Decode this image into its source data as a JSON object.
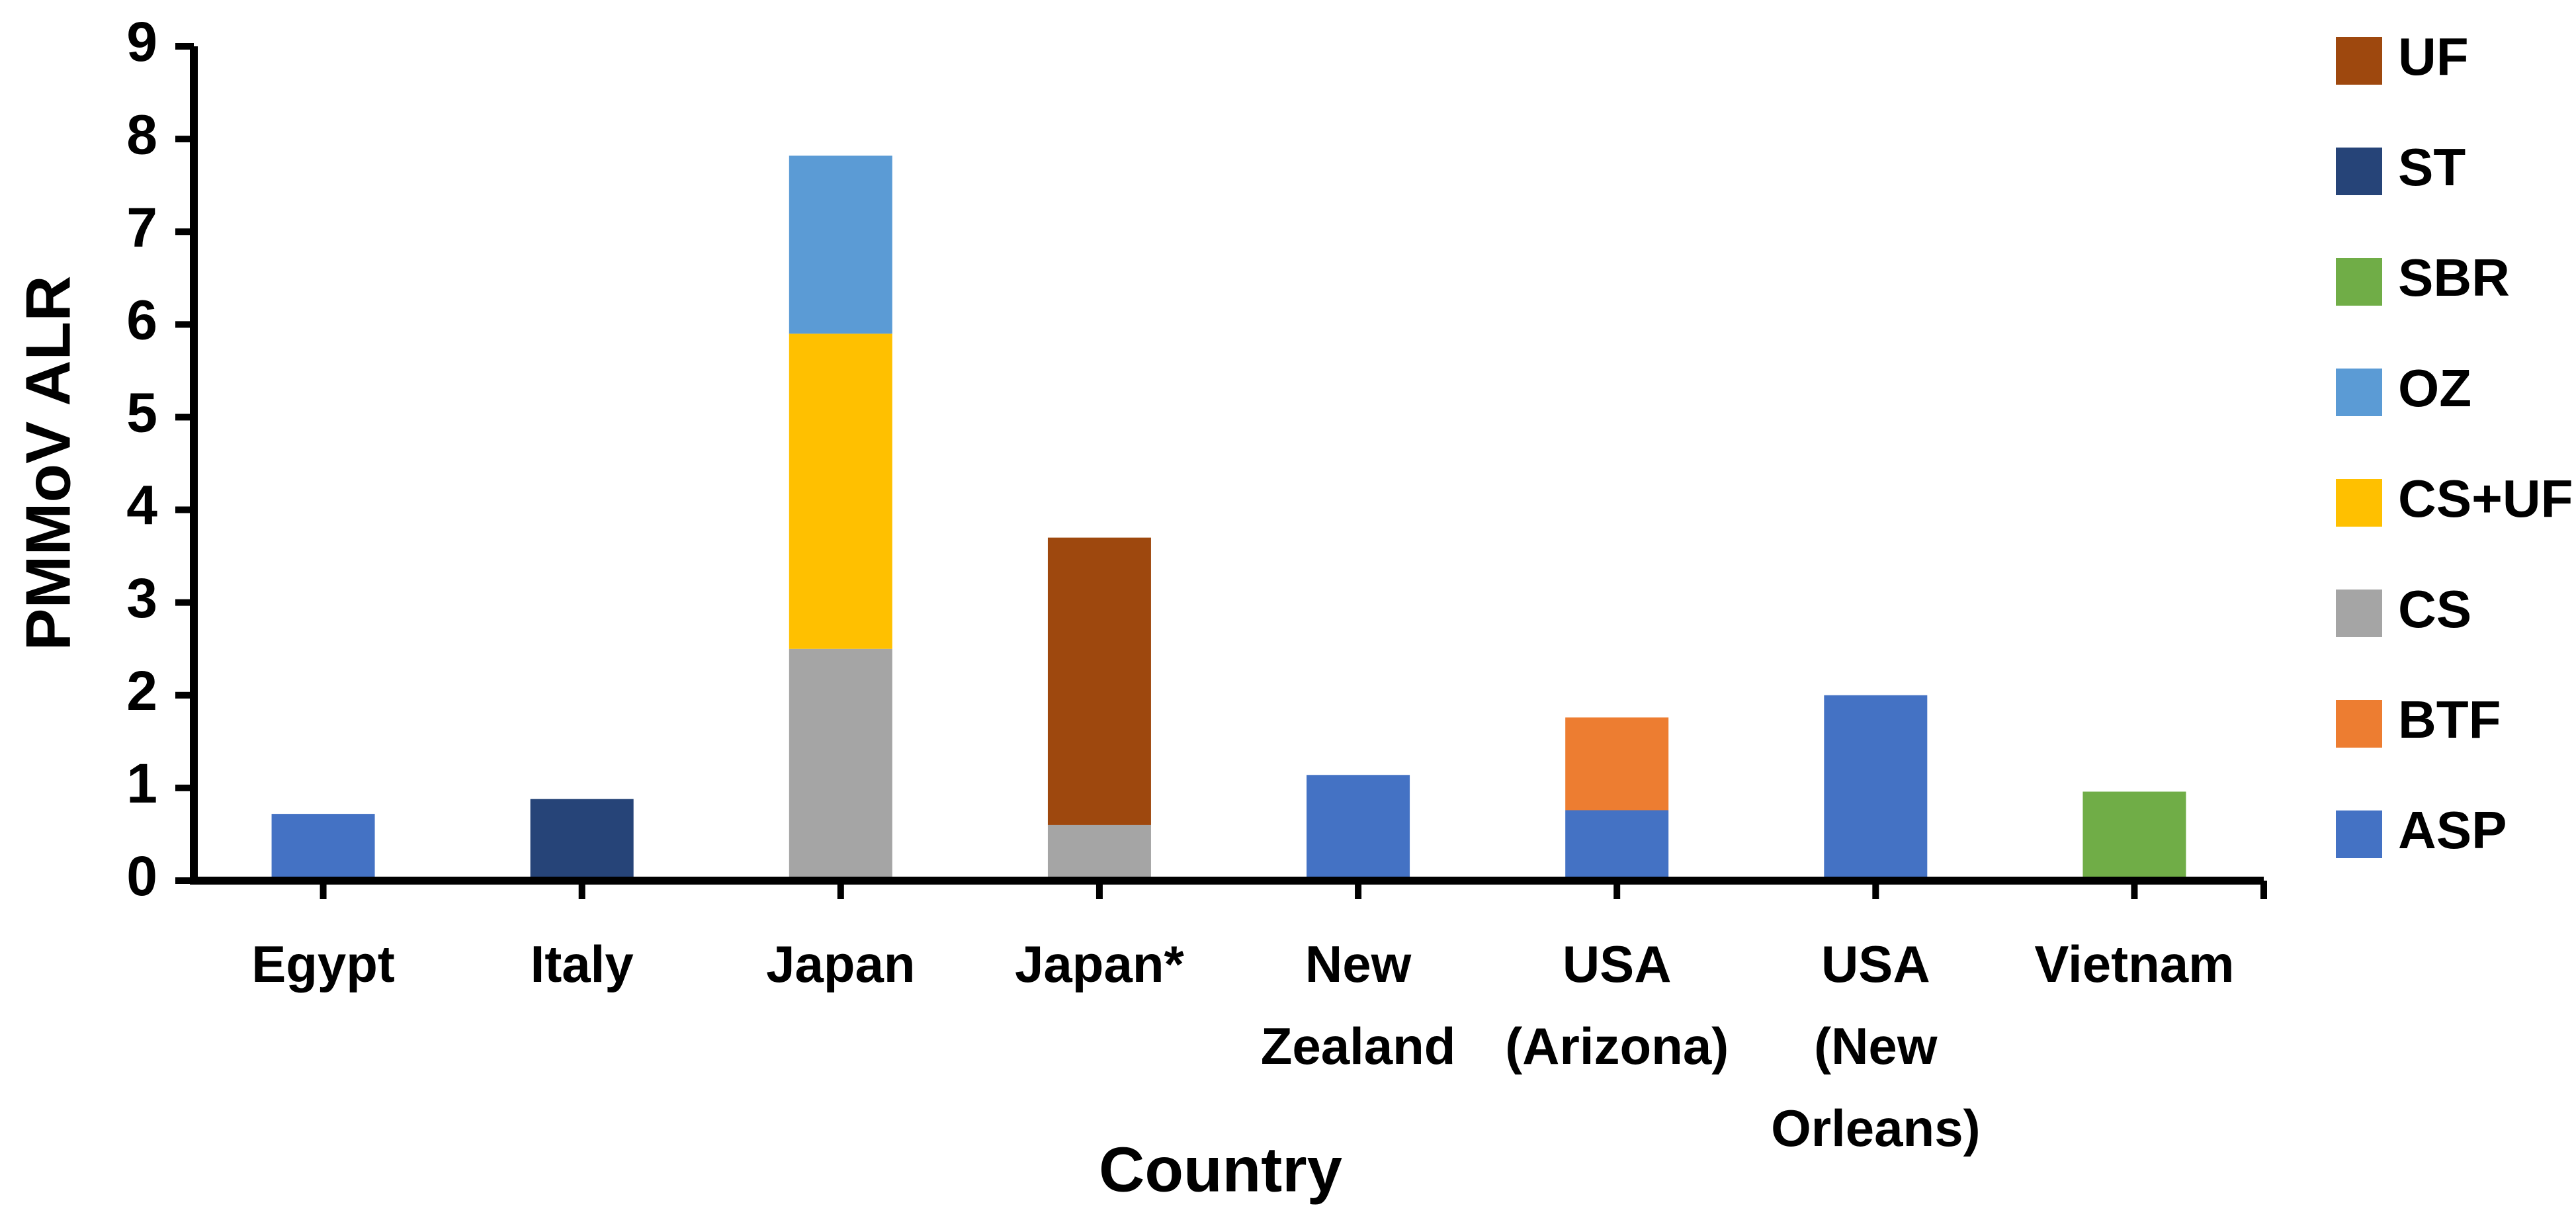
{
  "chart_data": {
    "type": "stacked-bar",
    "x_label": "Country",
    "y_label": "PMMoV ALR",
    "categories": [
      "Egypt",
      "Italy",
      "Japan",
      "Japan*",
      "New Zealand",
      "USA (Arizona)",
      "USA (New Orleans)",
      "Vietnam"
    ],
    "series": [
      {
        "name": "ASP",
        "color": "#4472c4",
        "values": [
          0.72,
          null,
          null,
          null,
          1.14,
          0.76,
          2.0,
          null
        ]
      },
      {
        "name": "BTF",
        "color": "#ed7d31",
        "values": [
          null,
          null,
          null,
          null,
          null,
          1.0,
          null,
          null
        ]
      },
      {
        "name": "CS",
        "color": "#a5a5a5",
        "values": [
          null,
          null,
          2.5,
          0.6,
          null,
          null,
          null,
          null
        ]
      },
      {
        "name": "CS+UF",
        "color": "#ffc000",
        "values": [
          null,
          null,
          3.4,
          null,
          null,
          null,
          null,
          null
        ]
      },
      {
        "name": "OZ",
        "color": "#5b9bd5",
        "values": [
          null,
          null,
          1.92,
          null,
          null,
          null,
          null,
          null
        ]
      },
      {
        "name": "SBR",
        "color": "#70ad47",
        "values": [
          null,
          null,
          null,
          null,
          null,
          null,
          null,
          0.96
        ]
      },
      {
        "name": "ST",
        "color": "#264478",
        "values": [
          null,
          0.88,
          null,
          null,
          null,
          null,
          null,
          null
        ]
      },
      {
        "name": "UF",
        "color": "#9e480e",
        "values": [
          null,
          null,
          null,
          3.1,
          null,
          null,
          null,
          null
        ]
      }
    ],
    "ylim": [
      0,
      9
    ],
    "yticks": [
      0,
      1,
      2,
      3,
      4,
      5,
      6,
      7,
      8,
      9
    ],
    "grid": false,
    "legend": "right"
  }
}
